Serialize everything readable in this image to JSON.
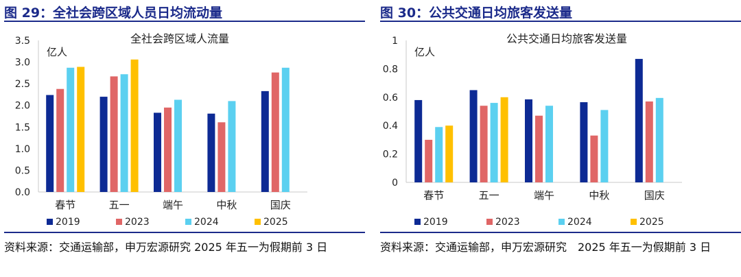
{
  "left": {
    "figure_title": "图 29：全社会跨区域人员日均流动量",
    "source": "资料来源：交通运输部，申万宏源研究 2025 年五一为假期前 3 日"
  },
  "right": {
    "figure_title": "图 30：公共交通日均旅客发送量",
    "source": "资料来源：交通运输部，申万宏源研究　2025 年五一为假期前 3 日"
  },
  "colors": {
    "2019": "#0d2a94",
    "2023": "#e06666",
    "2024": "#5bd0f0",
    "2025": "#ffc000",
    "rule": "#1b2a8a"
  },
  "chart_data": [
    {
      "type": "bar",
      "title": "全社会跨区域人流量",
      "unit_label": "亿人",
      "categories": [
        "春节",
        "五一",
        "端午",
        "中秋",
        "国庆"
      ],
      "ylim": [
        0,
        3.5
      ],
      "yticks": [
        "0.0",
        "0.5",
        "1.0",
        "1.5",
        "2.0",
        "2.5",
        "3.0",
        "3.5"
      ],
      "legend_position": "bottom",
      "series": [
        {
          "name": "2019",
          "values": [
            2.24,
            2.2,
            1.83,
            1.81,
            2.33
          ]
        },
        {
          "name": "2023",
          "values": [
            2.38,
            2.67,
            1.95,
            1.61,
            2.76
          ]
        },
        {
          "name": "2024",
          "values": [
            2.87,
            2.72,
            2.13,
            2.1,
            2.87
          ]
        },
        {
          "name": "2025",
          "values": [
            2.89,
            3.06,
            null,
            null,
            null
          ]
        }
      ]
    },
    {
      "type": "bar",
      "title": "公共交通日均旅客发送量",
      "unit_label": "亿人",
      "categories": [
        "春节",
        "五一",
        "端午",
        "中秋",
        "国庆"
      ],
      "ylim": [
        0,
        1
      ],
      "yticks": [
        "0",
        "0.2",
        "0.4",
        "0.6",
        "0.8",
        "1"
      ],
      "legend_position": "bottom",
      "series": [
        {
          "name": "2019",
          "values": [
            0.58,
            0.65,
            0.585,
            0.565,
            0.87
          ]
        },
        {
          "name": "2023",
          "values": [
            0.3,
            0.54,
            0.47,
            0.33,
            0.57
          ]
        },
        {
          "name": "2024",
          "values": [
            0.39,
            0.56,
            0.54,
            0.51,
            0.595
          ]
        },
        {
          "name": "2025",
          "values": [
            0.4,
            0.6,
            null,
            null,
            null
          ]
        }
      ]
    }
  ]
}
